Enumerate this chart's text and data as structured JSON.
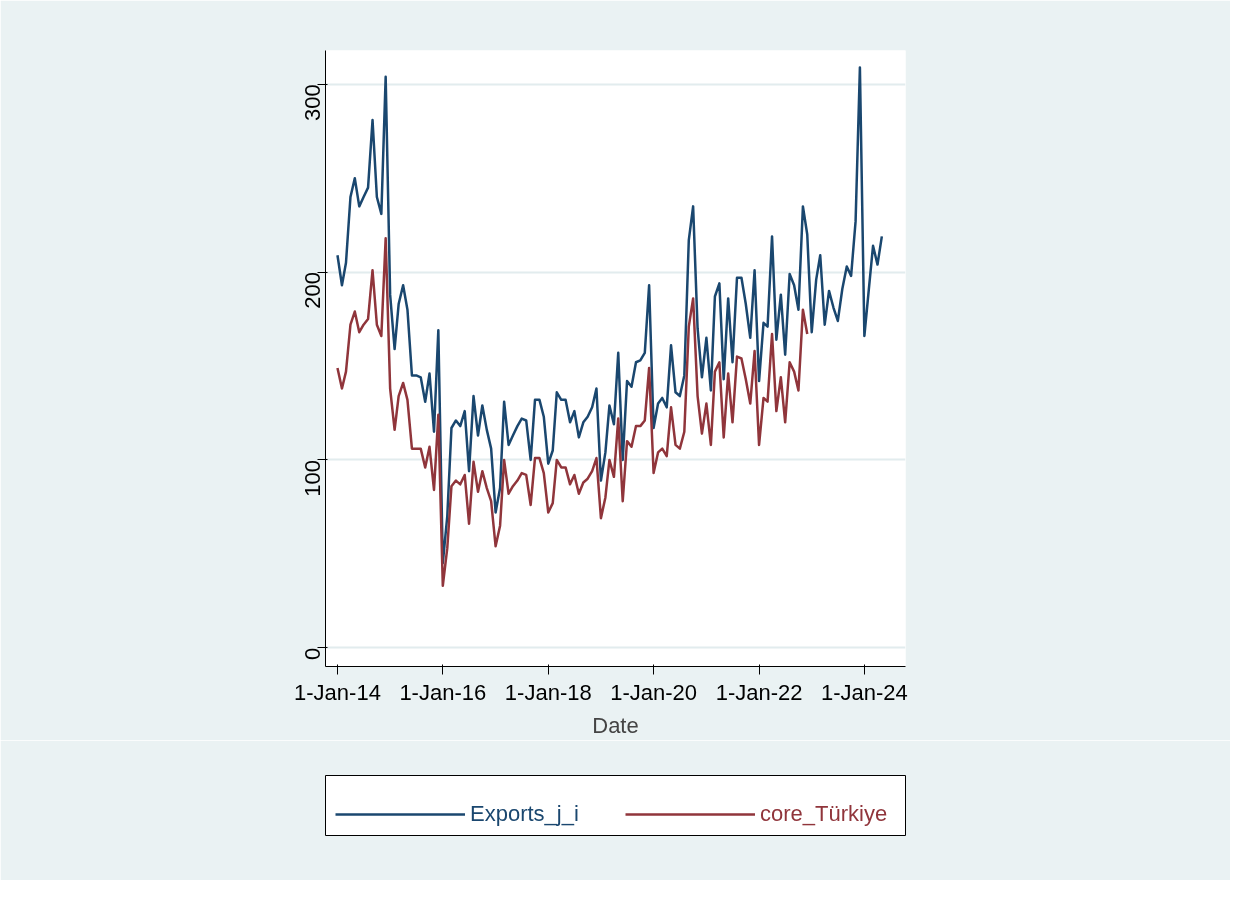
{
  "chart_data": {
    "type": "line",
    "xlabel": "Date",
    "x": [
      "2014-01",
      "2014-02",
      "2014-03",
      "2014-04",
      "2014-05",
      "2014-06",
      "2014-07",
      "2014-08",
      "2014-09",
      "2014-10",
      "2014-11",
      "2014-12",
      "2015-01",
      "2015-02",
      "2015-03",
      "2015-04",
      "2015-05",
      "2015-06",
      "2015-07",
      "2015-08",
      "2015-09",
      "2015-10",
      "2015-11",
      "2015-12",
      "2016-01",
      "2016-02",
      "2016-03",
      "2016-04",
      "2016-05",
      "2016-06",
      "2016-07",
      "2016-08",
      "2016-09",
      "2016-10",
      "2016-11",
      "2016-12",
      "2017-01",
      "2017-02",
      "2017-03",
      "2017-04",
      "2017-05",
      "2017-06",
      "2017-07",
      "2017-08",
      "2017-09",
      "2017-10",
      "2017-11",
      "2017-12",
      "2018-01",
      "2018-02",
      "2018-03",
      "2018-04",
      "2018-05",
      "2018-06",
      "2018-07",
      "2018-08",
      "2018-09",
      "2018-10",
      "2018-11",
      "2018-12",
      "2019-01",
      "2019-02",
      "2019-03",
      "2019-04",
      "2019-05",
      "2019-06",
      "2019-07",
      "2019-08",
      "2019-09",
      "2019-10",
      "2019-11",
      "2019-12",
      "2020-01",
      "2020-02",
      "2020-03",
      "2020-04",
      "2020-05",
      "2020-06",
      "2020-07",
      "2020-08",
      "2020-09",
      "2020-10",
      "2020-11",
      "2020-12",
      "2021-01",
      "2021-02",
      "2021-03",
      "2021-04",
      "2021-05",
      "2021-06",
      "2021-07",
      "2021-08",
      "2021-09",
      "2021-10",
      "2021-11",
      "2021-12",
      "2022-01",
      "2022-02",
      "2022-03",
      "2022-04",
      "2022-05",
      "2022-06",
      "2022-07",
      "2022-08",
      "2022-09",
      "2022-10",
      "2022-11",
      "2022-12",
      "2023-01",
      "2023-02",
      "2023-03",
      "2023-04",
      "2023-05",
      "2023-06",
      "2023-07",
      "2023-08",
      "2023-09",
      "2023-10",
      "2023-11",
      "2023-12",
      "2024-01",
      "2024-02",
      "2024-03",
      "2024-04",
      "2024-05"
    ],
    "series": [
      {
        "name": "Exports_j_i",
        "color": "#1a476f",
        "values": [
          209,
          193,
          205,
          240,
          250,
          235,
          240,
          245,
          281,
          240,
          231,
          304,
          188,
          159,
          183,
          193,
          180,
          145,
          145,
          144,
          131,
          146,
          115,
          169,
          45,
          70,
          117,
          121,
          118,
          126,
          94,
          134,
          113,
          129,
          116,
          106,
          72,
          85,
          131,
          108,
          113,
          118,
          122,
          121,
          100,
          132,
          132,
          123,
          98,
          105,
          136,
          132,
          132,
          120,
          126,
          112,
          120,
          123,
          128,
          138,
          89,
          104,
          129,
          119,
          157,
          100,
          142,
          139,
          152,
          153,
          157,
          193,
          117,
          130,
          133,
          128,
          161,
          136,
          134,
          145,
          217,
          235,
          170,
          144,
          165,
          137,
          187,
          194,
          143,
          186,
          152,
          197,
          197,
          183,
          165,
          201,
          142,
          173,
          171,
          219,
          164,
          188,
          156,
          199,
          193,
          180,
          235,
          220,
          168,
          196,
          209,
          172,
          190,
          181,
          174,
          191,
          203,
          198,
          227,
          309,
          166,
          191,
          214,
          204,
          219
        ]
      },
      {
        "name": "core_Türkiye",
        "color": "#90353b",
        "values": [
          149,
          138,
          147,
          172,
          179,
          168,
          172,
          175,
          201,
          172,
          166,
          218,
          138,
          116,
          134,
          141,
          132,
          106,
          106,
          106,
          96,
          107,
          84,
          124,
          33,
          53,
          86,
          89,
          87,
          92,
          66,
          99,
          83,
          94,
          85,
          78,
          54,
          65,
          100,
          82,
          86,
          89,
          93,
          92,
          76,
          101,
          101,
          93,
          72,
          77,
          100,
          96,
          96,
          87,
          92,
          82,
          88,
          90,
          94,
          101,
          69,
          80,
          100,
          91,
          122,
          78,
          110,
          107,
          118,
          118,
          121,
          149,
          93,
          104,
          106,
          102,
          128,
          108,
          106,
          115,
          171,
          186,
          134,
          114,
          130,
          108,
          147,
          152,
          112,
          146,
          120,
          155,
          154,
          143,
          130,
          158,
          108,
          133,
          131,
          167,
          126,
          144,
          120,
          152,
          147,
          137,
          180,
          167,
          null,
          null,
          null,
          null,
          null,
          null,
          null,
          null,
          null,
          null,
          null,
          null,
          null,
          null,
          null,
          null,
          null
        ]
      }
    ],
    "xlim": [
      "2013-10-10",
      "2024-10-12"
    ],
    "xticks": [
      {
        "value": "2014-01-01",
        "label": "1-Jan-14"
      },
      {
        "value": "2016-01-01",
        "label": "1-Jan-16"
      },
      {
        "value": "2018-01-01",
        "label": "1-Jan-18"
      },
      {
        "value": "2020-01-01",
        "label": "1-Jan-20"
      },
      {
        "value": "2022-01-01",
        "label": "1-Jan-22"
      },
      {
        "value": "2024-01-01",
        "label": "1-Jan-24"
      }
    ],
    "ylim": [
      -10,
      318
    ],
    "yticks": [
      0,
      100,
      200,
      300
    ],
    "grid": "y",
    "legend": "bottom",
    "marker": "none",
    "line_style": "solid"
  }
}
